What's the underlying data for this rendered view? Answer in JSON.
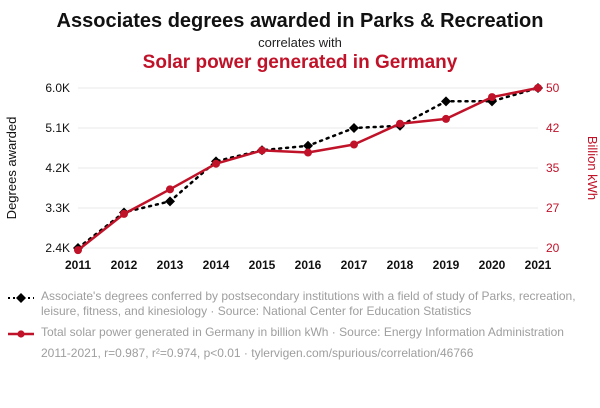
{
  "header": {
    "title": "Associates degrees awarded in Parks & Recreation",
    "connector": "correlates with",
    "title2": "Solar power generated in Germany"
  },
  "colors": {
    "accent_red": "#c01329",
    "series_black": "#000000",
    "grid": "#e8e8e8",
    "muted_text": "#9e9e9e"
  },
  "chart_data": {
    "type": "line",
    "x": [
      2011,
      2012,
      2013,
      2014,
      2015,
      2016,
      2017,
      2018,
      2019,
      2020,
      2021
    ],
    "left_axis": {
      "label": "Degrees awarded",
      "range": [
        2400,
        6000
      ],
      "tick_labels": [
        "2.4K",
        "3.3K",
        "4.2K",
        "5.1K",
        "6.0K"
      ],
      "tick_values": [
        2400,
        3300,
        4200,
        5100,
        6000
      ]
    },
    "right_axis": {
      "label": "Billion kWh",
      "range": [
        20,
        50
      ],
      "tick_labels": [
        "20",
        "27",
        "35",
        "42",
        "50"
      ],
      "tick_values": [
        20,
        27.5,
        35,
        42.5,
        50
      ]
    },
    "grid": true,
    "legend_position": "bottom",
    "series": [
      {
        "id": "degrees",
        "name": "Associate's degrees conferred in Parks, recreation, leisure, fitness, and kinesiology",
        "axis": "left",
        "color": "#000000",
        "line_style": "dotted",
        "marker": "diamond",
        "values": [
          2400,
          3200,
          3450,
          4350,
          4600,
          4700,
          5100,
          5150,
          5700,
          5700,
          6000
        ]
      },
      {
        "id": "solar",
        "name": "Total solar power generated in Germany (billion kWh)",
        "axis": "right",
        "color": "#c01329",
        "line_style": "solid",
        "marker": "circle",
        "values": [
          19.6,
          26.4,
          31.0,
          35.8,
          38.3,
          37.9,
          39.4,
          43.3,
          44.2,
          48.3,
          50.0
        ]
      }
    ]
  },
  "legend": [
    {
      "marker": "diamond",
      "color": "#000000",
      "text": "Associate's degrees conferred by postsecondary institutions with a field of study of Parks, recreation, leisure, fitness, and kinesiology · Source: National Center for Education Statistics"
    },
    {
      "marker": "circle",
      "color": "#c01329",
      "text": "Total solar power generated in Germany in billion kWh · Source: Energy Information Administration"
    }
  ],
  "footer": {
    "stats": "2011-2021, r=0.987, r²=0.974, p<0.01 · tylervigen.com/spurious/correlation/46766"
  }
}
